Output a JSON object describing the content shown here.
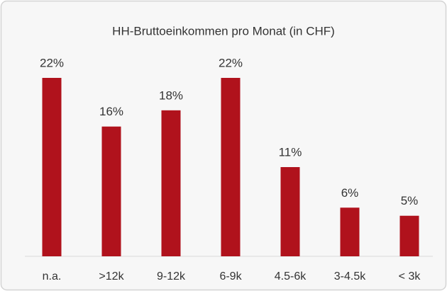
{
  "chart_data": {
    "type": "bar",
    "title": "HH-Bruttoeinkommen pro Monat (in CHF)",
    "categories": [
      "n.a.",
      ">12k",
      "9-12k",
      "6-9k",
      "4.5-6k",
      "3-4.5k",
      "< 3k"
    ],
    "values": [
      22,
      16,
      18,
      22,
      11,
      6,
      5
    ],
    "value_labels": [
      "22%",
      "16%",
      "18%",
      "22%",
      "11%",
      "6%",
      "5%"
    ],
    "color": "#b0121c"
  }
}
